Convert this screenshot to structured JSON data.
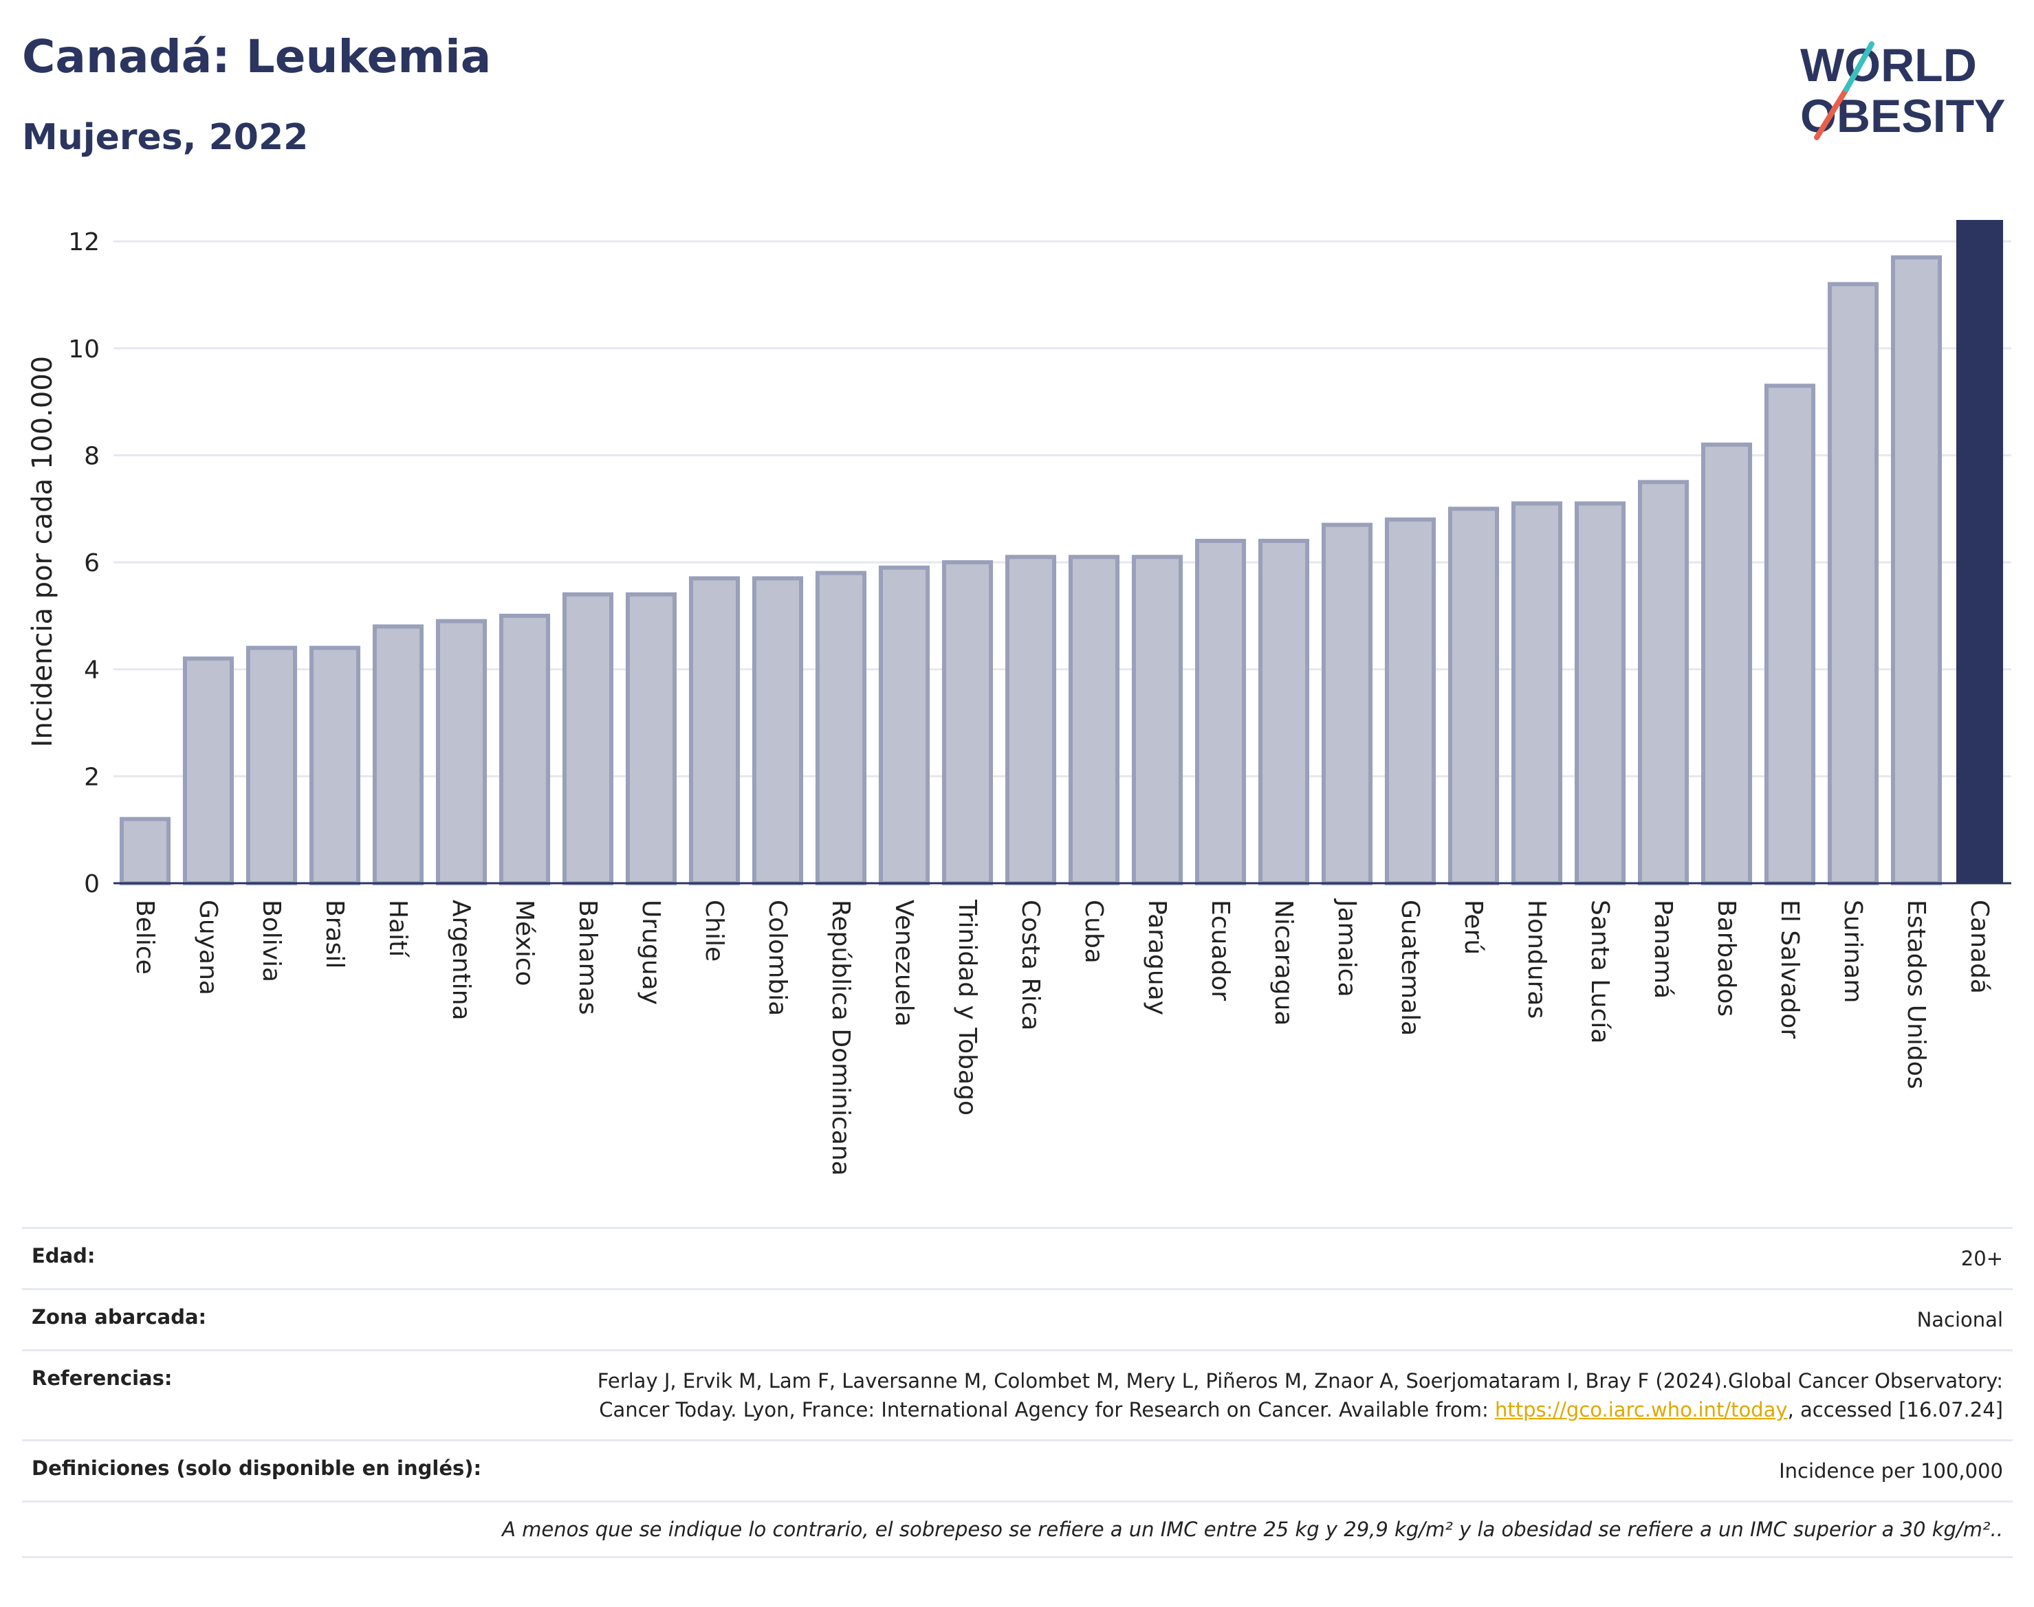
{
  "header": {
    "title": "Canadá: Leukemia",
    "subtitle": "Mujeres, 2022"
  },
  "logo": {
    "line1": "WORLD",
    "line2": "OBESITY",
    "colors": {
      "text": "#2b3560",
      "slash_teal": "#3bbfbf",
      "slash_coral": "#e8604c"
    }
  },
  "chart_data": {
    "type": "bar",
    "title": "Canadá: Leukemia",
    "subtitle": "Mujeres, 2022",
    "xlabel": "",
    "ylabel": "Incidencia por cada 100.000",
    "ylim": [
      0,
      12.4
    ],
    "yticks": [
      0,
      2,
      4,
      6,
      8,
      10,
      12
    ],
    "grid": true,
    "categories": [
      "Belice",
      "Guyana",
      "Bolivia",
      "Brasil",
      "Haití",
      "Argentina",
      "México",
      "Bahamas",
      "Uruguay",
      "Chile",
      "Colombia",
      "República Dominicana",
      "Venezuela",
      "Trinidad y Tobago",
      "Costa Rica",
      "Cuba",
      "Paraguay",
      "Ecuador",
      "Nicaragua",
      "Jamaica",
      "Guatemala",
      "Perú",
      "Honduras",
      "Santa Lucía",
      "Panamá",
      "Barbados",
      "El Salvador",
      "Surinam",
      "Estados Unidos",
      "Canadá"
    ],
    "values": [
      1.2,
      4.2,
      4.4,
      4.4,
      4.8,
      4.9,
      5.0,
      5.4,
      5.4,
      5.7,
      5.7,
      5.8,
      5.9,
      6.0,
      6.1,
      6.1,
      6.1,
      6.4,
      6.4,
      6.7,
      6.8,
      7.0,
      7.1,
      7.1,
      7.5,
      8.2,
      9.3,
      11.2,
      11.7,
      12.4
    ],
    "highlight": "Canadá",
    "colors": {
      "bar": "#bdc1d0",
      "bar_border": "#9aa0ba",
      "highlight": "#2b3560",
      "grid": "#e6e8ee",
      "axis": "#2b3560"
    }
  },
  "info": {
    "age_label": "Edad:",
    "age_value": "20+",
    "zone_label": "Zona abarcada:",
    "zone_value": "Nacional",
    "ref_label": "Referencias:",
    "ref_text_1": "Ferlay J, Ervik M, Lam F, Laversanne M, Colombet M, Mery L, Piñeros M, Znaor A, Soerjomataram I, Bray F (2024).Global Cancer Observatory: Cancer Today. Lyon, France: International Agency for Research on Cancer. Available from: ",
    "ref_link": "https://gco.iarc.who.int/today",
    "ref_text_2": ", accessed [16.07.24]",
    "def_label": "Definiciones (solo disponible en inglés):",
    "def_value": "Incidence per 100,000",
    "note": "A menos que se indique lo contrario, el sobrepeso se refiere a un IMC entre 25 kg y 29,9 kg/m² y la obesidad se refiere a un IMC superior a 30 kg/m².."
  }
}
